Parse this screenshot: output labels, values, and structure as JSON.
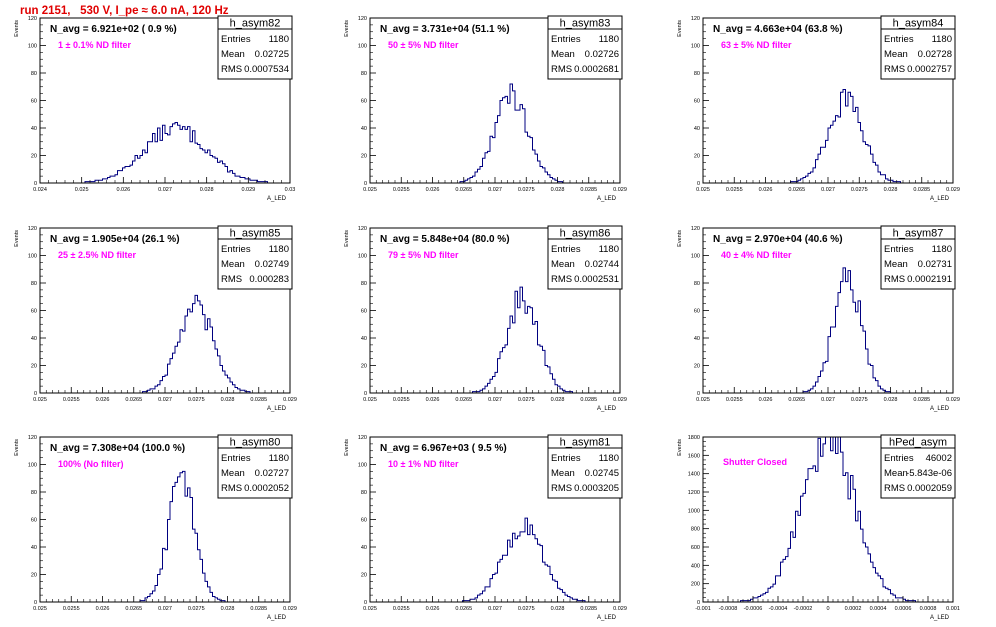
{
  "page": {
    "title": "run 2151,   530 V, I_pe ≈ 6.0 nA, 120 Hz"
  },
  "labels": {
    "stats_entries": "Entries",
    "stats_mean": "Mean",
    "stats_rms": "RMS"
  },
  "colors": {
    "title": "#e00000",
    "histogram": "#000080",
    "annotation": "#ff00ff",
    "frame": "#000000"
  },
  "chart_data": [
    {
      "type": "bar",
      "panel": "h_asym82",
      "stats_title": "h_asym82",
      "entries": "1180",
      "mean": "0.02725",
      "rms": "0.0007534",
      "header": "N_avg = 6.921e+02 ( 0.9 %)",
      "annotation": "1 ± 0.1% ND filter",
      "ylabel": "Events",
      "xlabel": "A_LED",
      "xlim": [
        0.024,
        0.03
      ],
      "ylim": [
        0,
        120
      ],
      "yticks": [
        "0",
        "20",
        "40",
        "60",
        "80",
        "100",
        "120"
      ],
      "xticks": [
        "0.024",
        "0.025",
        "0.026",
        "0.027",
        "0.028",
        "0.029",
        "0.03"
      ],
      "mu": 0.02725,
      "sigma": 0.00075,
      "peak": 40
    },
    {
      "type": "bar",
      "panel": "h_asym83",
      "stats_title": "h_asym83",
      "entries": "1180",
      "mean": "0.02726",
      "rms": "0.0002681",
      "header": "N_avg = 3.731e+04 (51.1 %)",
      "annotation": "50 ± 5% ND filter",
      "ylabel": "Events",
      "xlabel": "A_LED",
      "xlim": [
        0.025,
        0.029
      ],
      "ylim": [
        0,
        120
      ],
      "yticks": [
        "0",
        "20",
        "40",
        "60",
        "80",
        "100",
        "120"
      ],
      "xticks": [
        "0.025",
        "0.0255",
        "0.026",
        "0.0265",
        "0.027",
        "0.0275",
        "0.028",
        "0.0285",
        "0.029"
      ],
      "mu": 0.02726,
      "sigma": 0.00027,
      "peak": 64
    },
    {
      "type": "bar",
      "panel": "h_asym84",
      "stats_title": "h_asym84",
      "entries": "1180",
      "mean": "0.02728",
      "rms": "0.0002757",
      "header": "N_avg = 4.663e+04 (63.8 %)",
      "annotation": "63 ± 5% ND filter",
      "ylabel": "Events",
      "xlabel": "A_LED",
      "xlim": [
        0.025,
        0.029
      ],
      "ylim": [
        0,
        120
      ],
      "yticks": [
        "0",
        "20",
        "40",
        "60",
        "80",
        "100",
        "120"
      ],
      "xticks": [
        "0.025",
        "0.0255",
        "0.026",
        "0.0265",
        "0.027",
        "0.0275",
        "0.028",
        "0.0285",
        "0.029"
      ],
      "mu": 0.02728,
      "sigma": 0.00028,
      "peak": 60
    },
    {
      "type": "bar",
      "panel": "h_asym85",
      "stats_title": "h_asym85",
      "entries": "1180",
      "mean": "0.02749",
      "rms": "0.000283",
      "header": "N_avg = 1.905e+04 (26.1 %)",
      "annotation": "25 ± 2.5% ND filter",
      "ylabel": "Events",
      "xlabel": "A_LED",
      "xlim": [
        0.025,
        0.029
      ],
      "ylim": [
        0,
        120
      ],
      "yticks": [
        "0",
        "20",
        "40",
        "60",
        "80",
        "100",
        "120"
      ],
      "xticks": [
        "0.025",
        "0.0255",
        "0.026",
        "0.0265",
        "0.027",
        "0.0275",
        "0.028",
        "0.0285",
        "0.029"
      ],
      "mu": 0.02749,
      "sigma": 0.00028,
      "peak": 62
    },
    {
      "type": "bar",
      "panel": "h_asym86",
      "stats_title": "h_asym86",
      "entries": "1180",
      "mean": "0.02744",
      "rms": "0.0002531",
      "header": "N_avg = 5.848e+04 (80.0 %)",
      "annotation": "79 ± 5% ND filter",
      "ylabel": "Events",
      "xlabel": "A_LED",
      "xlim": [
        0.025,
        0.029
      ],
      "ylim": [
        0,
        120
      ],
      "yticks": [
        "0",
        "20",
        "40",
        "60",
        "80",
        "100",
        "120"
      ],
      "xticks": [
        "0.025",
        "0.0255",
        "0.026",
        "0.0265",
        "0.027",
        "0.0275",
        "0.028",
        "0.0285",
        "0.029"
      ],
      "mu": 0.02744,
      "sigma": 0.00025,
      "peak": 70
    },
    {
      "type": "bar",
      "panel": "h_asym87",
      "stats_title": "h_asym87",
      "entries": "1180",
      "mean": "0.02731",
      "rms": "0.0002191",
      "header": "N_avg = 2.970e+04 (40.6 %)",
      "annotation": "40 ± 4% ND filter",
      "ylabel": "Events",
      "xlabel": "A_LED",
      "xlim": [
        0.025,
        0.029
      ],
      "ylim": [
        0,
        120
      ],
      "yticks": [
        "0",
        "20",
        "40",
        "60",
        "80",
        "100",
        "120"
      ],
      "xticks": [
        "0.025",
        "0.0255",
        "0.026",
        "0.0265",
        "0.027",
        "0.0275",
        "0.028",
        "0.0285",
        "0.029"
      ],
      "mu": 0.02731,
      "sigma": 0.00022,
      "peak": 85
    },
    {
      "type": "bar",
      "panel": "h_asym80",
      "stats_title": "h_asym80",
      "entries": "1180",
      "mean": "0.02727",
      "rms": "0.0002052",
      "header": "N_avg = 7.308e+04 (100.0 %)",
      "annotation": "100% (No filter)",
      "ylabel": "Events",
      "xlabel": "A_LED",
      "xlim": [
        0.025,
        0.029
      ],
      "ylim": [
        0,
        120
      ],
      "yticks": [
        "0",
        "20",
        "40",
        "60",
        "80",
        "100",
        "120"
      ],
      "xticks": [
        "0.025",
        "0.0255",
        "0.026",
        "0.0265",
        "0.027",
        "0.0275",
        "0.028",
        "0.0285",
        "0.029"
      ],
      "mu": 0.02727,
      "sigma": 0.00021,
      "peak": 90
    },
    {
      "type": "bar",
      "panel": "h_asym81",
      "stats_title": "h_asym81",
      "entries": "1180",
      "mean": "0.02745",
      "rms": "0.0003205",
      "header": "N_avg = 6.967e+03 ( 9.5 %)",
      "annotation": "10 ± 1% ND filter",
      "ylabel": "Events",
      "xlabel": "A_LED",
      "xlim": [
        0.025,
        0.029
      ],
      "ylim": [
        0,
        120
      ],
      "yticks": [
        "0",
        "20",
        "40",
        "60",
        "80",
        "100",
        "120"
      ],
      "xticks": [
        "0.025",
        "0.0255",
        "0.026",
        "0.0265",
        "0.027",
        "0.0275",
        "0.028",
        "0.0285",
        "0.029"
      ],
      "mu": 0.02745,
      "sigma": 0.00032,
      "peak": 55
    },
    {
      "type": "bar",
      "panel": "hPed_asym",
      "stats_title": "hPed_asym",
      "entries": "46002",
      "mean": "-5.843e-06",
      "rms": "0.0002059",
      "header": "",
      "annotation": "Shutter Closed",
      "ylabel": "Events",
      "xlabel": "A_LED",
      "xlim": [
        -0.001,
        0.001
      ],
      "ylim": [
        0,
        1800
      ],
      "yticks": [
        "0",
        "200",
        "400",
        "600",
        "800",
        "1000",
        "1200",
        "1400",
        "1600",
        "1800"
      ],
      "xticks": [
        "-0.001",
        "-0.0008",
        "-0.0006",
        "-0.0004",
        "-0.0002",
        "0",
        "0.0002",
        "0.0004",
        "0.0006",
        "0.0008",
        "0.001"
      ],
      "mu": 0.0,
      "sigma": 0.00021,
      "peak": 1810
    }
  ]
}
